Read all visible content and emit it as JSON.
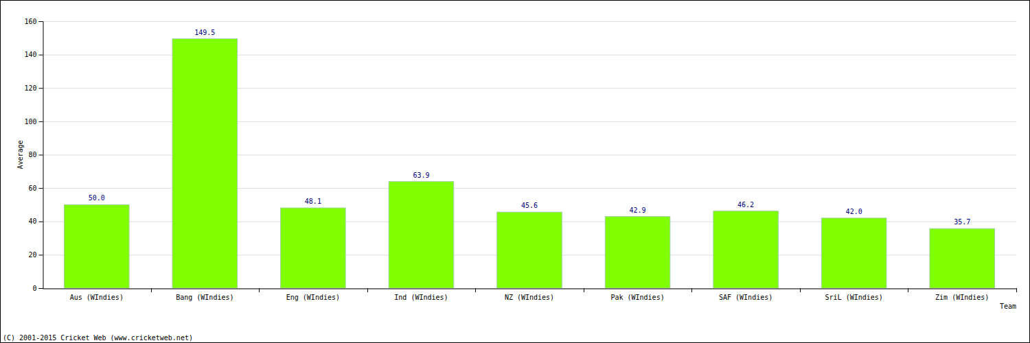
{
  "chart_data": {
    "type": "bar",
    "categories": [
      "Aus (WIndies)",
      "Bang (WIndies)",
      "Eng (WIndies)",
      "Ind (WIndies)",
      "NZ (WIndies)",
      "Pak (WIndies)",
      "SAF (WIndies)",
      "SriL (WIndies)",
      "Zim (WIndies)"
    ],
    "values": [
      50.0,
      149.5,
      48.1,
      63.9,
      45.6,
      42.9,
      46.2,
      42.0,
      35.7
    ],
    "value_labels": [
      "50.0",
      "149.5",
      "48.1",
      "63.9",
      "45.6",
      "42.9",
      "46.2",
      "42.0",
      "35.7"
    ],
    "data_labels": true,
    "color": "#80ff00",
    "x_label": "Team",
    "y_label": "Average",
    "ylim": [
      0,
      160
    ],
    "yticks": [
      0,
      20,
      40,
      60,
      80,
      100,
      120,
      140,
      160
    ],
    "grid": true,
    "annotations": [
      "(C) 2001-2015 Cricket Web (www.cricketweb.net)"
    ]
  }
}
